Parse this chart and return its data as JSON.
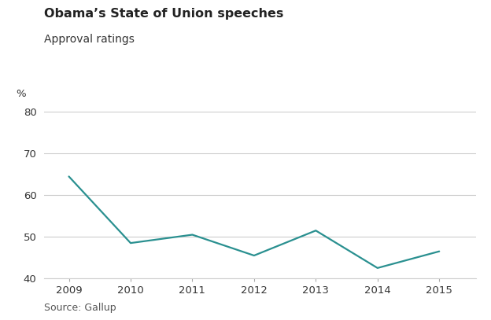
{
  "title": "Obama’s State of Union speeches",
  "subtitle": "Approval ratings",
  "ylabel": "%",
  "source": "Source: Gallup",
  "years": [
    2009,
    2010,
    2011,
    2012,
    2013,
    2014,
    2015
  ],
  "values": [
    64.5,
    48.5,
    50.5,
    45.5,
    51.5,
    42.5,
    46.5
  ],
  "line_color": "#2a9090",
  "background_color": "#ffffff",
  "ylim": [
    40,
    80
  ],
  "yticks": [
    40,
    50,
    60,
    70,
    80
  ],
  "grid_color": "#cccccc",
  "title_fontsize": 11.5,
  "subtitle_fontsize": 10,
  "tick_fontsize": 9.5,
  "source_fontsize": 9
}
